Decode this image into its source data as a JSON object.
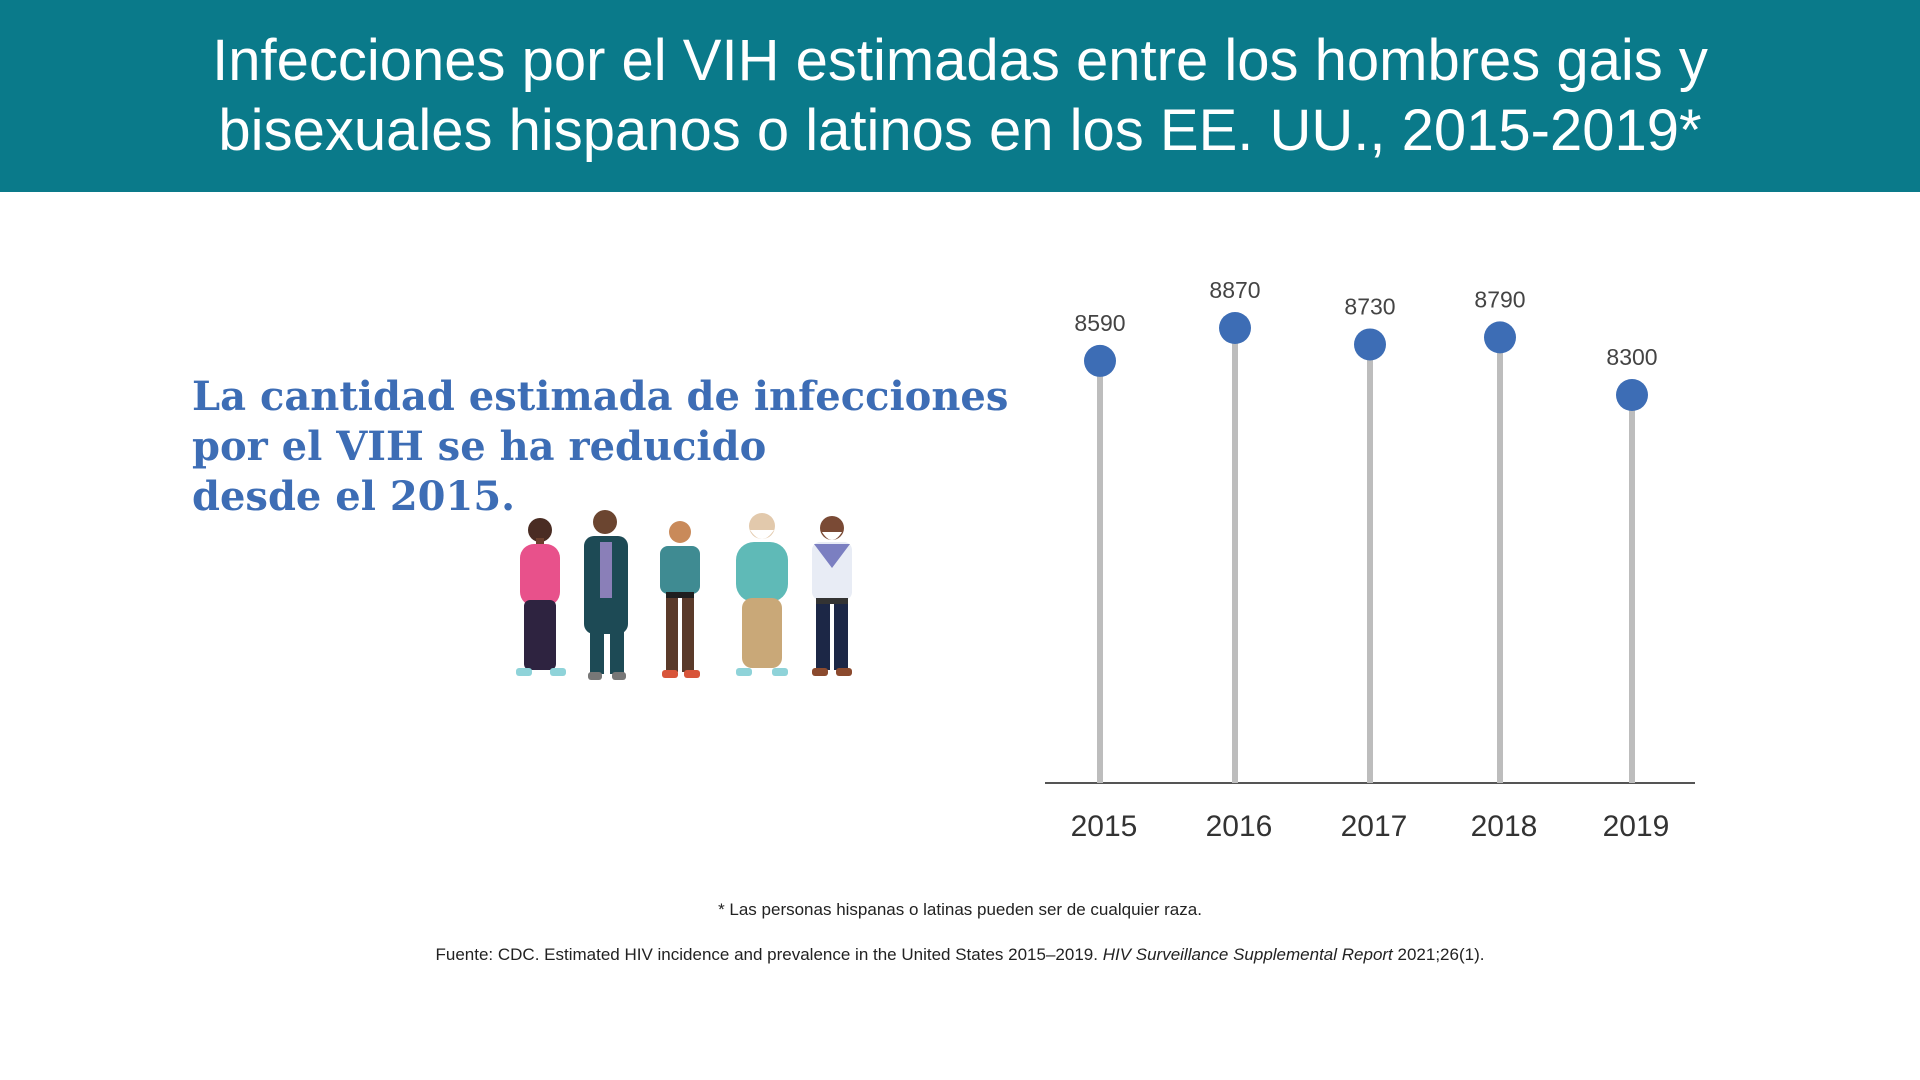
{
  "header": {
    "title_line1": "Infecciones por el VIH estimadas entre los hombres gais y",
    "title_line2": "bisexuales hispanos o latinos en los EE. UU., 2015-2019*"
  },
  "headline": {
    "line1": "La cantidad estimada de infecciones",
    "line2": "por el VIH se ha reducido",
    "line3": "desde el 2015."
  },
  "footnotes": {
    "race_note": "* Las personas hispanas o latinas pueden ser de cualquier raza.",
    "source_prefix": "Fuente: CDC. Estimated HIV incidence and prevalence in the United States 2015–2019. ",
    "source_italic": "HIV Surveillance Supplemental Report",
    "source_suffix": " 2021;26(1)."
  },
  "colors": {
    "header_bg": "#0a7a8a",
    "accent_blue": "#3d6db5",
    "stem_gray": "#bdbdbd",
    "axis_line": "#555555"
  },
  "chart_data": {
    "type": "lollipop",
    "categories": [
      "2015",
      "2016",
      "2017",
      "2018",
      "2019"
    ],
    "values": [
      8590,
      8870,
      8730,
      8790,
      8300
    ],
    "title": "",
    "xlabel": "",
    "ylabel": "",
    "grid": false,
    "legend": "none"
  }
}
